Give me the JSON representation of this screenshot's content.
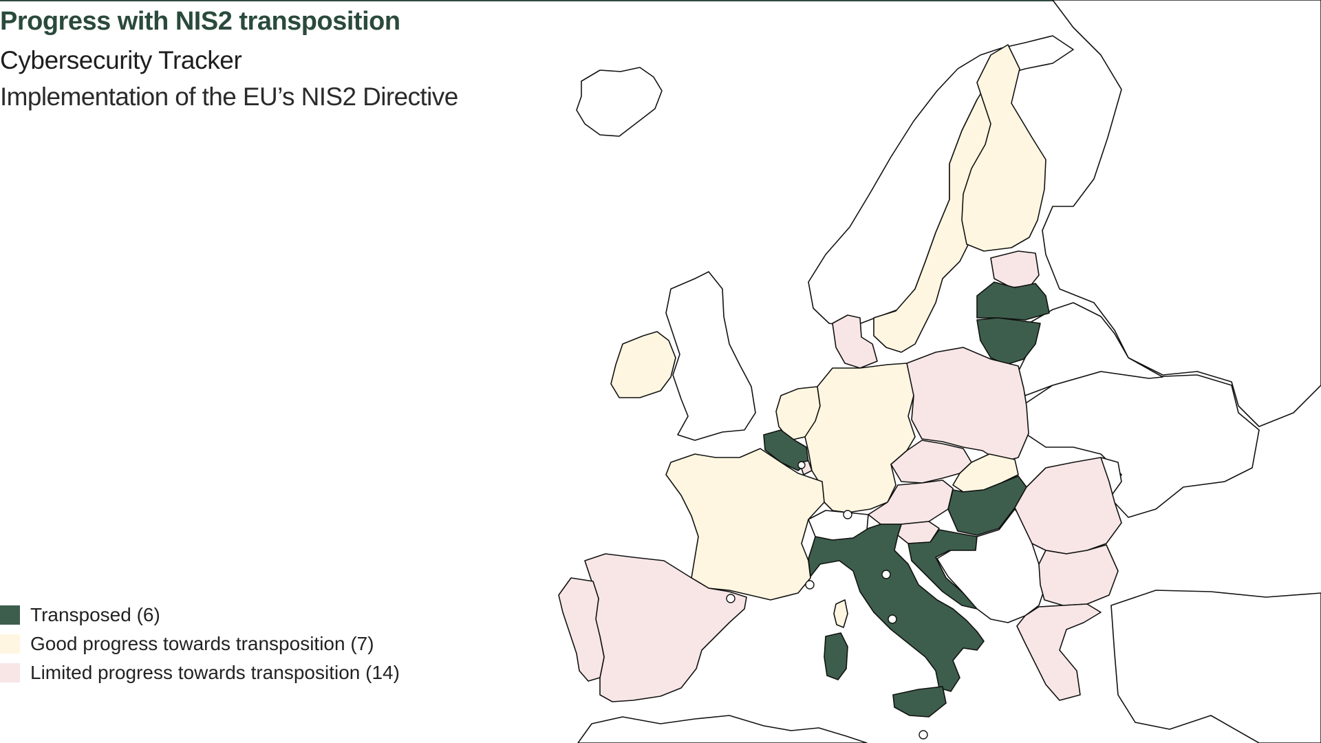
{
  "header": {
    "title": "Progress with NIS2 transposition",
    "subtitle": "Cybersecurity Tracker",
    "description": "Implementation of the EU’s NIS2 Directive"
  },
  "colors": {
    "transposed": "#3d5e4c",
    "good_progress": "#fef6e0",
    "limited_progress": "#f8e6e6",
    "non_eu": "#ffffff",
    "border": "#111111",
    "title": "#2a4a3c"
  },
  "legend": [
    {
      "label": "Transposed (6)",
      "color_key": "transposed"
    },
    {
      "label": "Good progress towards transposition (7)",
      "color_key": "good_progress"
    },
    {
      "label": "Limited progress towards transposition (14)",
      "color_key": "limited_progress"
    }
  ],
  "map": {
    "regions": [
      {
        "name": "iceland",
        "status": "non_eu"
      },
      {
        "name": "norway",
        "status": "non_eu"
      },
      {
        "name": "sweden",
        "status": "good_progress"
      },
      {
        "name": "finland",
        "status": "good_progress"
      },
      {
        "name": "estonia",
        "status": "limited_progress"
      },
      {
        "name": "latvia",
        "status": "transposed"
      },
      {
        "name": "lithuania",
        "status": "transposed"
      },
      {
        "name": "ireland",
        "status": "good_progress"
      },
      {
        "name": "united-kingdom",
        "status": "non_eu"
      },
      {
        "name": "denmark",
        "status": "limited_progress"
      },
      {
        "name": "netherlands",
        "status": "good_progress"
      },
      {
        "name": "belgium",
        "status": "transposed"
      },
      {
        "name": "luxembourg",
        "status": "limited_progress"
      },
      {
        "name": "germany",
        "status": "good_progress"
      },
      {
        "name": "poland",
        "status": "limited_progress"
      },
      {
        "name": "france",
        "status": "good_progress"
      },
      {
        "name": "switzerland",
        "status": "non_eu"
      },
      {
        "name": "czechia",
        "status": "limited_progress"
      },
      {
        "name": "slovakia",
        "status": "good_progress"
      },
      {
        "name": "austria",
        "status": "limited_progress"
      },
      {
        "name": "hungary",
        "status": "transposed"
      },
      {
        "name": "slovenia",
        "status": "limited_progress"
      },
      {
        "name": "croatia",
        "status": "transposed"
      },
      {
        "name": "italy",
        "status": "transposed"
      },
      {
        "name": "sardinia",
        "status": "transposed"
      },
      {
        "name": "sicily",
        "status": "transposed"
      },
      {
        "name": "corsica",
        "status": "good_progress"
      },
      {
        "name": "spain",
        "status": "limited_progress"
      },
      {
        "name": "portugal",
        "status": "limited_progress"
      },
      {
        "name": "romania",
        "status": "limited_progress"
      },
      {
        "name": "bulgaria",
        "status": "limited_progress"
      },
      {
        "name": "greece",
        "status": "limited_progress"
      },
      {
        "name": "balkans",
        "status": "non_eu"
      },
      {
        "name": "belarus",
        "status": "non_eu"
      },
      {
        "name": "ukraine",
        "status": "non_eu"
      },
      {
        "name": "moldova",
        "status": "non_eu"
      },
      {
        "name": "russia",
        "status": "non_eu"
      },
      {
        "name": "turkey",
        "status": "non_eu"
      },
      {
        "name": "north-africa",
        "status": "non_eu"
      }
    ],
    "markers": [
      "microstate-marker",
      "microstate-marker",
      "microstate-marker",
      "microstate-marker",
      "microstate-marker",
      "microstate-marker",
      "malta-marker"
    ]
  }
}
